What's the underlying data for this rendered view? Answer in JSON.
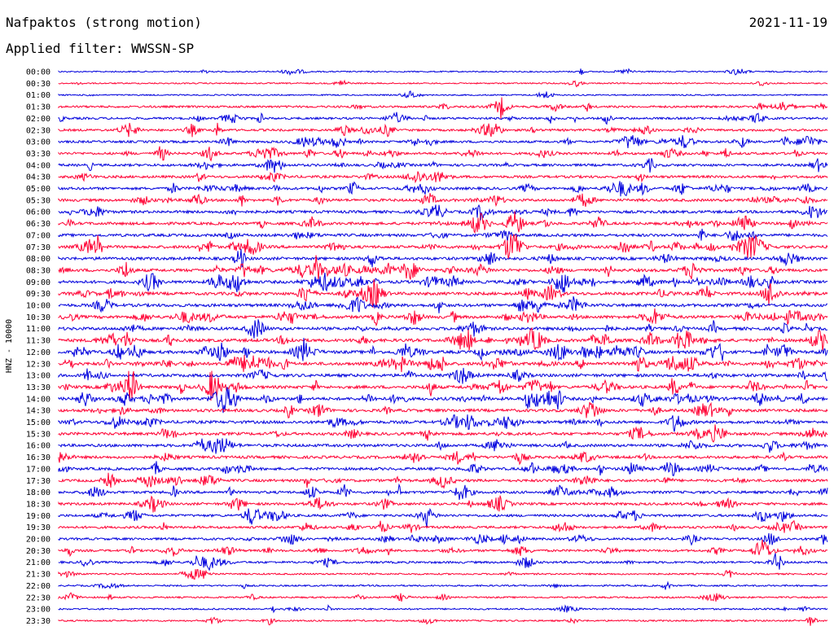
{
  "header": {
    "station": "Nafpaktos (strong motion)",
    "date": "2021-11-19",
    "filter": "Applied filter: WWSSN-SP"
  },
  "chart_data": {
    "type": "line",
    "kind": "helicorder",
    "ylabel": "HNZ - 10000",
    "rows": [
      "00:00",
      "00:30",
      "01:00",
      "01:30",
      "02:00",
      "02:30",
      "03:00",
      "03:30",
      "04:00",
      "04:30",
      "05:00",
      "05:30",
      "06:00",
      "06:30",
      "07:00",
      "07:30",
      "08:00",
      "08:30",
      "09:00",
      "09:30",
      "10:00",
      "10:30",
      "11:00",
      "11:30",
      "12:00",
      "12:30",
      "13:00",
      "13:30",
      "14:00",
      "14:30",
      "15:00",
      "15:30",
      "16:00",
      "16:30",
      "17:00",
      "17:30",
      "18:00",
      "18:30",
      "19:00",
      "19:30",
      "20:00",
      "20:30",
      "21:00",
      "21:30",
      "22:00",
      "22:30",
      "23:00",
      "23:30"
    ],
    "colors": [
      "#0000dd",
      "#ff0033"
    ],
    "grid": false,
    "legend": "none"
  }
}
